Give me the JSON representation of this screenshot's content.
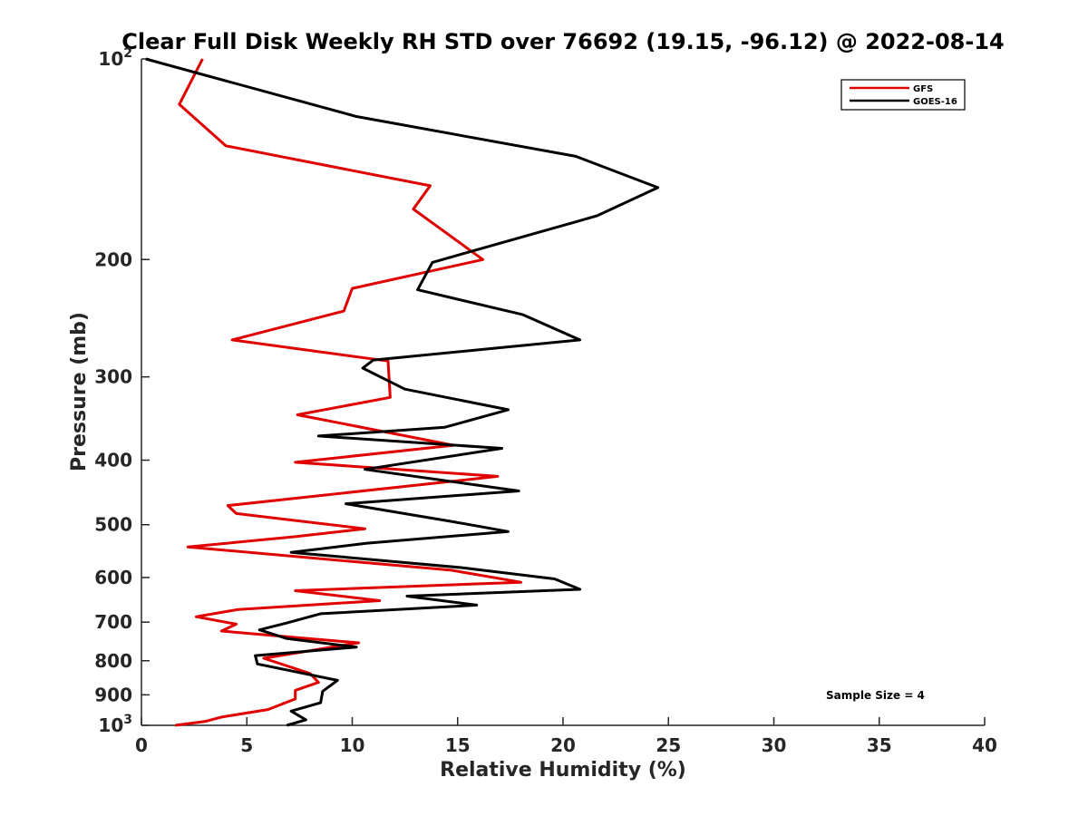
{
  "chart_data": {
    "type": "line",
    "title": "Clear Full Disk Weekly RH STD over 76692 (19.15, -96.12) @ 2022-08-14",
    "xlabel": "Relative Humidity (%)",
    "ylabel": "Pressure (mb)",
    "xlim": [
      0,
      40
    ],
    "ylim": [
      100,
      1000
    ],
    "yscale": "log",
    "y_reversed": true,
    "x_ticks": [
      "0",
      "5",
      "10",
      "15",
      "20",
      "25",
      "30",
      "35",
      "40"
    ],
    "y_ticks": [
      {
        "value": 100,
        "base": "10",
        "exp": "2"
      },
      {
        "value": 200,
        "label": "200"
      },
      {
        "value": 300,
        "label": "300"
      },
      {
        "value": 400,
        "label": "400"
      },
      {
        "value": 500,
        "label": "500"
      },
      {
        "value": 600,
        "label": "600"
      },
      {
        "value": 700,
        "label": "700"
      },
      {
        "value": 800,
        "label": "800"
      },
      {
        "value": 900,
        "label": "900"
      },
      {
        "value": 1000,
        "base": "10",
        "exp": "3"
      }
    ],
    "legend_position": "top-right",
    "annotation": "Sample Size = 4",
    "series": [
      {
        "name": "GFS",
        "color": "#e00000",
        "points": [
          [
            2.9,
            100
          ],
          [
            1.8,
            117
          ],
          [
            4.0,
            135
          ],
          [
            13.7,
            155
          ],
          [
            12.9,
            168
          ],
          [
            16.2,
            200
          ],
          [
            10.0,
            221
          ],
          [
            9.6,
            239
          ],
          [
            4.3,
            264
          ],
          [
            11.7,
            284
          ],
          [
            11.8,
            322
          ],
          [
            7.4,
            342
          ],
          [
            14.8,
            380
          ],
          [
            7.3,
            403
          ],
          [
            16.9,
            423
          ],
          [
            4.1,
            468
          ],
          [
            4.5,
            481
          ],
          [
            10.6,
            507
          ],
          [
            7.3,
            521
          ],
          [
            2.2,
            540
          ],
          [
            14.7,
            585
          ],
          [
            18.0,
            610
          ],
          [
            7.3,
            628
          ],
          [
            11.3,
            650
          ],
          [
            4.6,
            670
          ],
          [
            2.6,
            687
          ],
          [
            4.5,
            705
          ],
          [
            3.8,
            722
          ],
          [
            10.3,
            752
          ],
          [
            5.8,
            793
          ],
          [
            8.0,
            836
          ],
          [
            8.4,
            862
          ],
          [
            7.3,
            886
          ],
          [
            7.3,
            913
          ],
          [
            6.0,
            947
          ],
          [
            3.8,
            972
          ],
          [
            3.0,
            987
          ],
          [
            1.6,
            1000
          ]
        ]
      },
      {
        "name": "GOES-16",
        "color": "#000000",
        "points": [
          [
            0.2,
            100
          ],
          [
            10.2,
            122
          ],
          [
            20.6,
            140
          ],
          [
            24.5,
            156
          ],
          [
            21.6,
            172
          ],
          [
            13.8,
            202
          ],
          [
            13.1,
            222
          ],
          [
            18.1,
            242
          ],
          [
            20.8,
            264
          ],
          [
            11.0,
            283
          ],
          [
            10.5,
            291
          ],
          [
            12.5,
            313
          ],
          [
            17.4,
            336
          ],
          [
            14.4,
            357
          ],
          [
            8.4,
            368
          ],
          [
            17.1,
            384
          ],
          [
            10.6,
            413
          ],
          [
            17.9,
            445
          ],
          [
            9.7,
            465
          ],
          [
            14.8,
            495
          ],
          [
            17.4,
            512
          ],
          [
            10.7,
            533
          ],
          [
            7.1,
            550
          ],
          [
            15.2,
            580
          ],
          [
            19.6,
            603
          ],
          [
            20.8,
            625
          ],
          [
            12.6,
            640
          ],
          [
            15.9,
            660
          ],
          [
            8.5,
            680
          ],
          [
            6.9,
            702
          ],
          [
            5.6,
            719
          ],
          [
            6.9,
            741
          ],
          [
            10.2,
            763
          ],
          [
            5.4,
            786
          ],
          [
            5.5,
            809
          ],
          [
            9.3,
            856
          ],
          [
            8.6,
            889
          ],
          [
            8.5,
            925
          ],
          [
            7.1,
            952
          ],
          [
            7.8,
            981
          ],
          [
            6.9,
            1000
          ]
        ]
      }
    ]
  }
}
